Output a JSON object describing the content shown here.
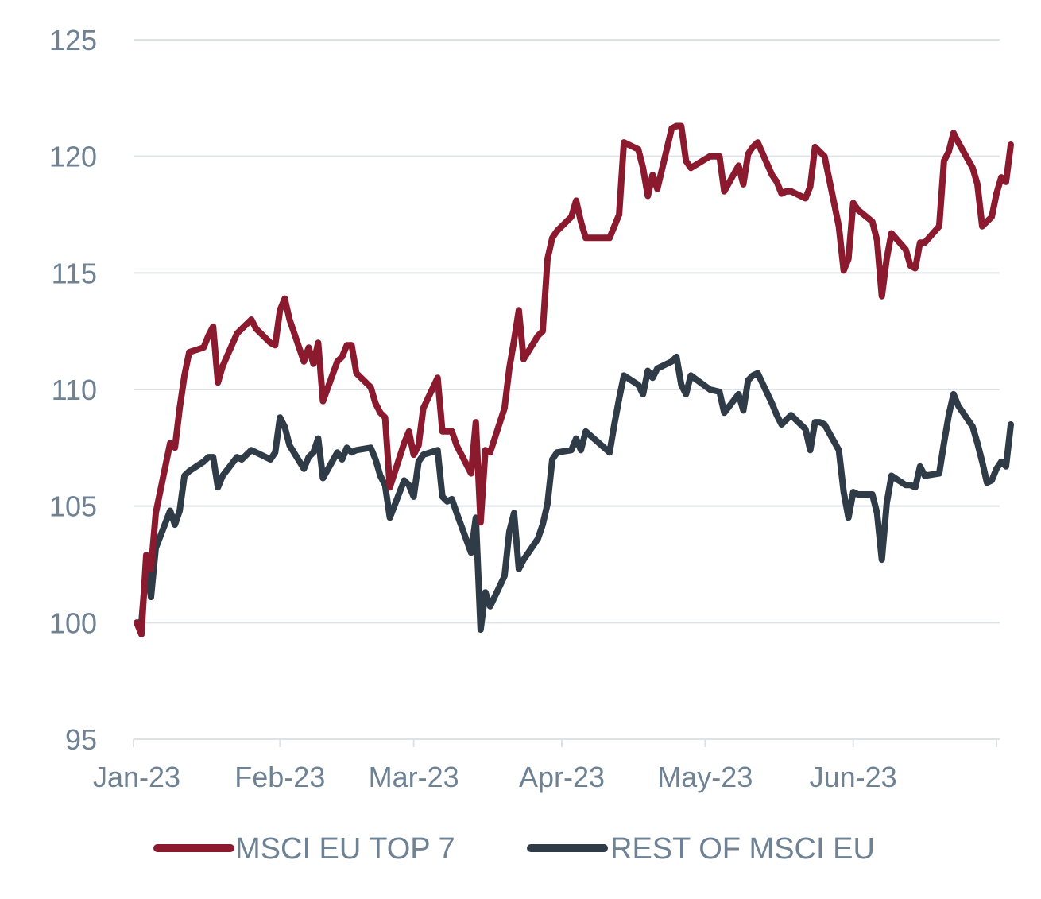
{
  "chart_data": {
    "type": "line",
    "x_ticks": [
      "Jan-23",
      "Feb-23",
      "Mar-23",
      "Apr-23",
      "May-23",
      "Jun-23"
    ],
    "y_ticks": [
      95,
      100,
      105,
      110,
      115,
      120,
      125
    ],
    "ylim": [
      95,
      125
    ],
    "xlim": [
      "2023-01-02",
      "2023-06-30"
    ],
    "grid": "horizontal",
    "legend_position": "bottom",
    "colors": {
      "top7": "#8b1a2e",
      "rest": "#2f3b46"
    },
    "series": [
      {
        "name": "MSCI EU TOP 7",
        "points": [
          [
            "2023-01-02",
            100.0
          ],
          [
            "2023-01-03",
            99.5
          ],
          [
            "2023-01-04",
            102.9
          ],
          [
            "2023-01-05",
            102.3
          ],
          [
            "2023-01-06",
            104.7
          ],
          [
            "2023-01-09",
            107.7
          ],
          [
            "2023-01-10",
            107.5
          ],
          [
            "2023-01-11",
            109.2
          ],
          [
            "2023-01-12",
            110.6
          ],
          [
            "2023-01-13",
            111.6
          ],
          [
            "2023-01-16",
            111.8
          ],
          [
            "2023-01-17",
            112.3
          ],
          [
            "2023-01-18",
            112.7
          ],
          [
            "2023-01-19",
            110.3
          ],
          [
            "2023-01-20",
            111.0
          ],
          [
            "2023-01-23",
            112.4
          ],
          [
            "2023-01-24",
            112.6
          ],
          [
            "2023-01-26",
            113.0
          ],
          [
            "2023-01-27",
            112.6
          ],
          [
            "2023-01-30",
            112.0
          ],
          [
            "2023-01-31",
            111.9
          ],
          [
            "2023-02-01",
            113.4
          ],
          [
            "2023-02-02",
            113.9
          ],
          [
            "2023-02-03",
            113.0
          ],
          [
            "2023-02-06",
            111.2
          ],
          [
            "2023-02-07",
            111.8
          ],
          [
            "2023-02-08",
            111.1
          ],
          [
            "2023-02-09",
            112.0
          ],
          [
            "2023-02-10",
            109.5
          ],
          [
            "2023-02-13",
            111.2
          ],
          [
            "2023-02-14",
            111.4
          ],
          [
            "2023-02-15",
            111.9
          ],
          [
            "2023-02-16",
            111.9
          ],
          [
            "2023-02-17",
            110.7
          ],
          [
            "2023-02-20",
            110.1
          ],
          [
            "2023-02-21",
            109.4
          ],
          [
            "2023-02-22",
            109.0
          ],
          [
            "2023-02-23",
            108.8
          ],
          [
            "2023-02-24",
            105.8
          ],
          [
            "2023-02-27",
            107.7
          ],
          [
            "2023-02-28",
            108.2
          ],
          [
            "2023-03-01",
            107.2
          ],
          [
            "2023-03-02",
            107.6
          ],
          [
            "2023-03-03",
            109.2
          ],
          [
            "2023-03-06",
            110.5
          ],
          [
            "2023-03-07",
            108.2
          ],
          [
            "2023-03-08",
            108.2
          ],
          [
            "2023-03-09",
            108.2
          ],
          [
            "2023-03-10",
            107.6
          ],
          [
            "2023-03-13",
            106.4
          ],
          [
            "2023-03-14",
            108.6
          ],
          [
            "2023-03-15",
            104.3
          ],
          [
            "2023-03-16",
            107.4
          ],
          [
            "2023-03-17",
            107.3
          ],
          [
            "2023-03-20",
            109.2
          ],
          [
            "2023-03-21",
            110.9
          ],
          [
            "2023-03-22",
            112.1
          ],
          [
            "2023-03-23",
            113.4
          ],
          [
            "2023-03-24",
            111.3
          ],
          [
            "2023-03-27",
            112.3
          ],
          [
            "2023-03-28",
            112.5
          ],
          [
            "2023-03-29",
            115.6
          ],
          [
            "2023-03-30",
            116.5
          ],
          [
            "2023-03-31",
            116.8
          ],
          [
            "2023-04-03",
            117.4
          ],
          [
            "2023-04-04",
            118.1
          ],
          [
            "2023-04-05",
            117.2
          ],
          [
            "2023-04-06",
            116.5
          ],
          [
            "2023-04-11",
            116.5
          ],
          [
            "2023-04-12",
            117.0
          ],
          [
            "2023-04-13",
            117.5
          ],
          [
            "2023-04-14",
            120.6
          ],
          [
            "2023-04-17",
            120.3
          ],
          [
            "2023-04-18",
            119.5
          ],
          [
            "2023-04-19",
            118.3
          ],
          [
            "2023-04-20",
            119.2
          ],
          [
            "2023-04-21",
            118.6
          ],
          [
            "2023-04-24",
            121.2
          ],
          [
            "2023-04-25",
            121.3
          ],
          [
            "2023-04-26",
            121.3
          ],
          [
            "2023-04-27",
            119.8
          ],
          [
            "2023-04-28",
            119.5
          ],
          [
            "2023-05-02",
            120.0
          ],
          [
            "2023-05-04",
            120.0
          ],
          [
            "2023-05-05",
            118.5
          ],
          [
            "2023-05-08",
            119.6
          ],
          [
            "2023-05-09",
            118.8
          ],
          [
            "2023-05-10",
            120.1
          ],
          [
            "2023-05-11",
            120.4
          ],
          [
            "2023-05-12",
            120.6
          ],
          [
            "2023-05-15",
            119.2
          ],
          [
            "2023-05-16",
            118.9
          ],
          [
            "2023-05-17",
            118.4
          ],
          [
            "2023-05-18",
            118.5
          ],
          [
            "2023-05-19",
            118.5
          ],
          [
            "2023-05-22",
            118.2
          ],
          [
            "2023-05-23",
            118.7
          ],
          [
            "2023-05-24",
            120.4
          ],
          [
            "2023-05-25",
            120.2
          ],
          [
            "2023-05-26",
            120.0
          ],
          [
            "2023-05-29",
            117.0
          ],
          [
            "2023-05-30",
            115.1
          ],
          [
            "2023-05-31",
            115.6
          ],
          [
            "2023-06-01",
            118.0
          ],
          [
            "2023-06-02",
            117.7
          ],
          [
            "2023-06-05",
            117.2
          ],
          [
            "2023-06-06",
            116.4
          ],
          [
            "2023-06-07",
            114.0
          ],
          [
            "2023-06-08",
            115.6
          ],
          [
            "2023-06-09",
            116.7
          ],
          [
            "2023-06-12",
            116.0
          ],
          [
            "2023-06-13",
            115.3
          ],
          [
            "2023-06-14",
            115.2
          ],
          [
            "2023-06-15",
            116.3
          ],
          [
            "2023-06-16",
            116.3
          ],
          [
            "2023-06-19",
            117.0
          ],
          [
            "2023-06-20",
            119.8
          ],
          [
            "2023-06-21",
            120.2
          ],
          [
            "2023-06-22",
            121.0
          ],
          [
            "2023-06-23",
            120.6
          ],
          [
            "2023-06-26",
            119.5
          ],
          [
            "2023-06-27",
            118.8
          ],
          [
            "2023-06-28",
            117.0
          ],
          [
            "2023-06-29",
            117.2
          ],
          [
            "2023-06-30",
            117.4
          ],
          [
            "2023-07-01",
            118.4
          ],
          [
            "2023-07-02",
            119.1
          ],
          [
            "2023-07-03",
            118.9
          ],
          [
            "2023-07-04",
            120.5
          ]
        ]
      },
      {
        "name": "REST OF MSCI EU",
        "points": [
          [
            "2023-01-02",
            100.0
          ],
          [
            "2023-01-03",
            100.0
          ],
          [
            "2023-01-04",
            102.5
          ],
          [
            "2023-01-05",
            101.1
          ],
          [
            "2023-01-06",
            103.2
          ],
          [
            "2023-01-09",
            104.8
          ],
          [
            "2023-01-10",
            104.2
          ],
          [
            "2023-01-11",
            104.8
          ],
          [
            "2023-01-12",
            106.3
          ],
          [
            "2023-01-13",
            106.5
          ],
          [
            "2023-01-16",
            106.9
          ],
          [
            "2023-01-17",
            107.1
          ],
          [
            "2023-01-18",
            107.1
          ],
          [
            "2023-01-19",
            105.8
          ],
          [
            "2023-01-20",
            106.3
          ],
          [
            "2023-01-23",
            107.1
          ],
          [
            "2023-01-24",
            107.0
          ],
          [
            "2023-01-26",
            107.4
          ],
          [
            "2023-01-27",
            107.3
          ],
          [
            "2023-01-30",
            107.0
          ],
          [
            "2023-01-31",
            107.3
          ],
          [
            "2023-02-01",
            108.8
          ],
          [
            "2023-02-02",
            108.4
          ],
          [
            "2023-02-03",
            107.6
          ],
          [
            "2023-02-06",
            106.6
          ],
          [
            "2023-02-07",
            107.1
          ],
          [
            "2023-02-08",
            107.3
          ],
          [
            "2023-02-09",
            107.9
          ],
          [
            "2023-02-10",
            106.2
          ],
          [
            "2023-02-13",
            107.3
          ],
          [
            "2023-02-14",
            107.0
          ],
          [
            "2023-02-15",
            107.5
          ],
          [
            "2023-02-16",
            107.3
          ],
          [
            "2023-02-17",
            107.4
          ],
          [
            "2023-02-20",
            107.5
          ],
          [
            "2023-02-21",
            107.0
          ],
          [
            "2023-02-22",
            106.3
          ],
          [
            "2023-02-23",
            105.9
          ],
          [
            "2023-02-24",
            104.5
          ],
          [
            "2023-02-27",
            106.1
          ],
          [
            "2023-02-28",
            105.9
          ],
          [
            "2023-03-01",
            105.4
          ],
          [
            "2023-03-02",
            106.9
          ],
          [
            "2023-03-03",
            107.2
          ],
          [
            "2023-03-06",
            107.4
          ],
          [
            "2023-03-07",
            105.4
          ],
          [
            "2023-03-08",
            105.2
          ],
          [
            "2023-03-09",
            105.3
          ],
          [
            "2023-03-10",
            104.7
          ],
          [
            "2023-03-13",
            103.0
          ],
          [
            "2023-03-14",
            104.5
          ],
          [
            "2023-03-15",
            99.7
          ],
          [
            "2023-03-16",
            101.3
          ],
          [
            "2023-03-17",
            100.7
          ],
          [
            "2023-03-20",
            102.0
          ],
          [
            "2023-03-21",
            103.9
          ],
          [
            "2023-03-22",
            104.7
          ],
          [
            "2023-03-23",
            102.3
          ],
          [
            "2023-03-24",
            102.7
          ],
          [
            "2023-03-27",
            103.6
          ],
          [
            "2023-03-28",
            104.2
          ],
          [
            "2023-03-29",
            105.1
          ],
          [
            "2023-03-30",
            107.0
          ],
          [
            "2023-03-31",
            107.3
          ],
          [
            "2023-04-03",
            107.4
          ],
          [
            "2023-04-04",
            107.9
          ],
          [
            "2023-04-05",
            107.4
          ],
          [
            "2023-04-06",
            108.2
          ],
          [
            "2023-04-11",
            107.3
          ],
          [
            "2023-04-12",
            108.5
          ],
          [
            "2023-04-13",
            109.6
          ],
          [
            "2023-04-14",
            110.6
          ],
          [
            "2023-04-17",
            110.2
          ],
          [
            "2023-04-18",
            109.8
          ],
          [
            "2023-04-19",
            110.8
          ],
          [
            "2023-04-20",
            110.5
          ],
          [
            "2023-04-21",
            110.9
          ],
          [
            "2023-04-24",
            111.2
          ],
          [
            "2023-04-25",
            111.4
          ],
          [
            "2023-04-26",
            110.2
          ],
          [
            "2023-04-27",
            109.8
          ],
          [
            "2023-04-28",
            110.6
          ],
          [
            "2023-05-02",
            110.0
          ],
          [
            "2023-05-04",
            109.9
          ],
          [
            "2023-05-05",
            109.0
          ],
          [
            "2023-05-08",
            109.8
          ],
          [
            "2023-05-09",
            109.1
          ],
          [
            "2023-05-10",
            110.4
          ],
          [
            "2023-05-11",
            110.6
          ],
          [
            "2023-05-12",
            110.7
          ],
          [
            "2023-05-15",
            109.4
          ],
          [
            "2023-05-16",
            108.9
          ],
          [
            "2023-05-17",
            108.5
          ],
          [
            "2023-05-18",
            108.7
          ],
          [
            "2023-05-19",
            108.9
          ],
          [
            "2023-05-22",
            108.3
          ],
          [
            "2023-05-23",
            107.4
          ],
          [
            "2023-05-24",
            108.6
          ],
          [
            "2023-05-25",
            108.6
          ],
          [
            "2023-05-26",
            108.5
          ],
          [
            "2023-05-29",
            107.4
          ],
          [
            "2023-05-30",
            105.6
          ],
          [
            "2023-05-31",
            104.5
          ],
          [
            "2023-06-01",
            105.6
          ],
          [
            "2023-06-02",
            105.5
          ],
          [
            "2023-06-05",
            105.5
          ],
          [
            "2023-06-06",
            104.7
          ],
          [
            "2023-06-07",
            102.7
          ],
          [
            "2023-06-08",
            105.1
          ],
          [
            "2023-06-09",
            106.3
          ],
          [
            "2023-06-12",
            105.9
          ],
          [
            "2023-06-13",
            105.9
          ],
          [
            "2023-06-14",
            105.8
          ],
          [
            "2023-06-15",
            106.7
          ],
          [
            "2023-06-16",
            106.3
          ],
          [
            "2023-06-19",
            106.4
          ],
          [
            "2023-06-20",
            107.7
          ],
          [
            "2023-06-21",
            108.9
          ],
          [
            "2023-06-22",
            109.8
          ],
          [
            "2023-06-23",
            109.3
          ],
          [
            "2023-06-26",
            108.4
          ],
          [
            "2023-06-27",
            107.7
          ],
          [
            "2023-06-28",
            106.9
          ],
          [
            "2023-06-29",
            106.0
          ],
          [
            "2023-06-30",
            106.1
          ],
          [
            "2023-07-01",
            106.6
          ],
          [
            "2023-07-02",
            106.9
          ],
          [
            "2023-07-03",
            106.7
          ],
          [
            "2023-07-04",
            108.5
          ]
        ]
      }
    ]
  }
}
